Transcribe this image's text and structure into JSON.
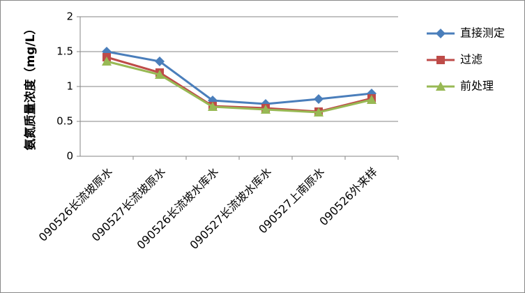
{
  "chart_data": {
    "type": "line",
    "y_label": "氨氮质量浓度（mg/L）",
    "categories": [
      "090526长流坡原水",
      "090527长流坡原水",
      "090526长流坡水库水",
      "090527长流坡水库水",
      "090527上南原水",
      "090526外来样"
    ],
    "series": [
      {
        "name": "直接测定",
        "color": "#4a7ebb",
        "marker": "diamond",
        "values": [
          1.5,
          1.36,
          0.8,
          0.75,
          0.82,
          0.9
        ]
      },
      {
        "name": "过滤",
        "color": "#be4b48",
        "marker": "square",
        "values": [
          1.42,
          1.2,
          0.72,
          0.69,
          0.64,
          0.83
        ]
      },
      {
        "name": "前处理",
        "color": "#98b954",
        "marker": "triangle",
        "values": [
          1.36,
          1.17,
          0.71,
          0.67,
          0.63,
          0.81
        ]
      }
    ],
    "ylim": [
      0,
      2
    ],
    "yticks": [
      0,
      0.5,
      1,
      1.5,
      2
    ],
    "grid": true,
    "legend": "right"
  }
}
